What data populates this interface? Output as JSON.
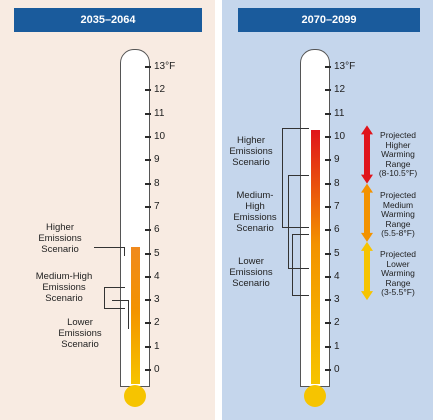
{
  "chart_data": [
    {
      "type": "thermometer",
      "title": "2035–2064",
      "unit": "°F",
      "scale": [
        0,
        13
      ],
      "ticks": [
        "0",
        "1",
        "2",
        "3",
        "4",
        "5",
        "6",
        "7",
        "8",
        "9",
        "10",
        "11",
        "12",
        "13°F"
      ],
      "fill_top_value": 5.3,
      "scenarios": [
        {
          "name": "Higher Emissions Scenario"
        },
        {
          "name": "Medium-High Emissions Scenario"
        },
        {
          "name": "Lower Emissions Scenario"
        }
      ]
    },
    {
      "type": "thermometer",
      "title": "2070–2099",
      "unit": "°F",
      "scale": [
        0,
        13
      ],
      "ticks": [
        "0",
        "1",
        "2",
        "3",
        "4",
        "5",
        "6",
        "7",
        "8",
        "9",
        "10",
        "11",
        "12",
        "13°F"
      ],
      "fill_top_value": 10.3,
      "scenarios": [
        {
          "name": "Higher Emissions Scenario"
        },
        {
          "name": "Medium-High Emissions Scenario"
        },
        {
          "name": "Lower Emissions Scenario"
        }
      ],
      "ranges": [
        {
          "label": "Projected Higher Warming Range (8-10.5°F)",
          "low": 8,
          "high": 10.5,
          "color": "#e0141b"
        },
        {
          "label": "Projected Medium Warming Range (5.5-8°F)",
          "low": 5.5,
          "high": 8,
          "color": "#f39200"
        },
        {
          "label": "Projected Lower Warming Range (3-5.5°F)",
          "low": 3,
          "high": 5.5,
          "color": "#f6c400"
        }
      ]
    }
  ],
  "left": {
    "header": "2035–2064",
    "labels": {
      "high": [
        "Higher",
        "Emissions",
        "Scenario"
      ],
      "med": [
        "Medium-High",
        "Emissions",
        "Scenario"
      ],
      "low": [
        "Lower",
        "Emissions",
        "Scenario"
      ]
    }
  },
  "right": {
    "header": "2070–2099",
    "labels": {
      "high": [
        "Higher",
        "Emissions",
        "Scenario"
      ],
      "med": [
        "Medium-",
        "High",
        "Emissions",
        "Scenario"
      ],
      "low": [
        "Lower",
        "Emissions",
        "Scenario"
      ]
    },
    "ranges": {
      "high": [
        "Projected",
        "Higher",
        "Warming",
        "Range",
        "(8-10.5°F)"
      ],
      "med": [
        "Projected",
        "Medium",
        "Warming",
        "Range",
        "(5.5-8°F)"
      ],
      "low": [
        "Projected",
        "Lower",
        "Warming",
        "Range",
        "(3-5.5°F)"
      ]
    }
  },
  "colors": {
    "bulb": "#f6c400",
    "fill_bottom": "#f6c400",
    "fill_mid": "#f39200",
    "fill_top_left": "#f08a1e",
    "fill_top_right": "#e0141b"
  }
}
